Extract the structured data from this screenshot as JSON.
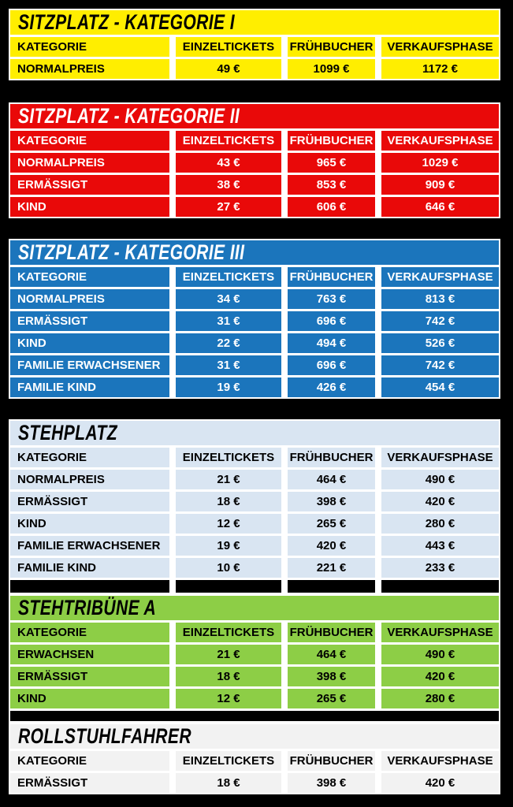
{
  "poster": {
    "background_color": "#000000",
    "grid_line_color": "#FFFFFF",
    "columns": [
      "KATEGORIE",
      "EINZELTICKETS",
      "FRÜHBUCHER",
      "VERKAUFSPHASE"
    ],
    "sections": [
      {
        "title": "SITZPLATZ - KATEGORIE I",
        "bg": "#FFEE00",
        "text_color": "#000000",
        "rows": [
          [
            "NORMALPREIS",
            "49 €",
            "1099 €",
            "1172 €"
          ]
        ]
      },
      {
        "title": "SITZPLATZ - KATEGORIE II",
        "bg": "#E90909",
        "text_color": "#FFFFFF",
        "rows": [
          [
            "NORMALPREIS",
            "43 €",
            "965 €",
            "1029 €"
          ],
          [
            "ERMÄSSIGT",
            "38 €",
            "853 €",
            "909 €"
          ],
          [
            "KIND",
            "27 €",
            "606 €",
            "646 €"
          ]
        ]
      },
      {
        "title": "SITZPLATZ - KATEGORIE III",
        "bg": "#1B75BC",
        "text_color": "#FFFFFF",
        "rows": [
          [
            "NORMALPREIS",
            "34 €",
            "763 €",
            "813 €"
          ],
          [
            "ERMÄSSIGT",
            "31 €",
            "696 €",
            "742 €"
          ],
          [
            "KIND",
            "22 €",
            "494 €",
            "526 €"
          ],
          [
            "FAMILIE ERWACHSENER",
            "31 €",
            "696 €",
            "742 €"
          ],
          [
            "FAMILIE KIND",
            "19 €",
            "426 €",
            "454 €"
          ]
        ]
      },
      {
        "title": "STEHPLATZ",
        "bg": "#D9E5F2",
        "text_color": "#000000",
        "rows": [
          [
            "NORMALPREIS",
            "21 €",
            "464 €",
            "490 €"
          ],
          [
            "ERMÄSSIGT",
            "18 €",
            "398 €",
            "420 €"
          ],
          [
            "KIND",
            "12 €",
            "265 €",
            "280 €"
          ],
          [
            "FAMILIE ERWACHSENER",
            "19 €",
            "420 €",
            "443 €"
          ],
          [
            "FAMILIE KIND",
            "10 €",
            "221 €",
            "233 €"
          ]
        ]
      },
      {
        "title": "STEHTRIBÜNE A",
        "bg": "#8DCE46",
        "text_color": "#000000",
        "rows": [
          [
            "ERWACHSEN",
            "21 €",
            "464 €",
            "490 €"
          ],
          [
            "ERMÄSSIGT",
            "18 €",
            "398 €",
            "420 €"
          ],
          [
            "KIND",
            "12 €",
            "265 €",
            "280 €"
          ]
        ]
      },
      {
        "title": "ROLLSTUHLFAHRER",
        "bg": "#F2F2F2",
        "text_color": "#000000",
        "rows": [
          [
            "ERMÄSSIGT",
            "18 €",
            "398 €",
            "420 €"
          ]
        ]
      }
    ]
  }
}
